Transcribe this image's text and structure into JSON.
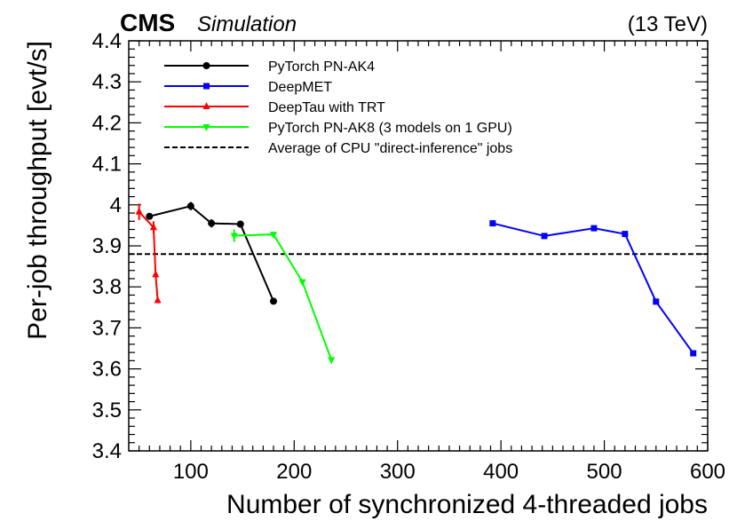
{
  "chart_data": {
    "type": "line",
    "experiment": "CMS",
    "subtitle": "Simulation",
    "energy_label": "(13 TeV)",
    "xlabel": "Number of synchronized 4-threaded jobs",
    "ylabel": "Per-job throughput [evt/s]",
    "xlim": [
      40,
      600
    ],
    "ylim": [
      3.4,
      4.4
    ],
    "x_ticks": [
      100,
      200,
      300,
      400,
      500,
      600
    ],
    "y_ticks": [
      3.4,
      3.5,
      3.6,
      3.7,
      3.8,
      3.9,
      4,
      4.1,
      4.2,
      4.3,
      4.4
    ],
    "y_tick_labels": [
      "3.4",
      "3.5",
      "3.6",
      "3.7",
      "3.8",
      "3.9",
      "4",
      "4.1",
      "4.2",
      "4.3",
      "4.4"
    ],
    "legend_position": "top-left",
    "series": [
      {
        "name": "PyTorch PN-AK4",
        "color": "#000000",
        "marker": "circle",
        "x": [
          60,
          100,
          120,
          148,
          180
        ],
        "y": [
          3.972,
          3.997,
          3.955,
          3.953,
          3.765
        ],
        "yerr": [
          0.006,
          0.01,
          0.01,
          0.008,
          0.004
        ]
      },
      {
        "name": "DeepMET",
        "color": "#0000ff",
        "marker": "square",
        "x": [
          392,
          442,
          490,
          520,
          550,
          586
        ],
        "y": [
          3.955,
          3.924,
          3.943,
          3.929,
          3.764,
          3.638
        ],
        "yerr": [
          0.004,
          0.004,
          0.004,
          0.004,
          0.004,
          0.004
        ]
      },
      {
        "name": "DeepTau with TRT",
        "color": "#ff0000",
        "marker": "triangle-up",
        "x": [
          50,
          64,
          66,
          68
        ],
        "y": [
          3.983,
          3.945,
          3.83,
          3.767
        ],
        "yerr": [
          0.02,
          0.015,
          0.005,
          0.005
        ]
      },
      {
        "name": "PyTorch PN-AK8 (3 models on 1 GPU)",
        "color": "#00ff00",
        "marker": "triangle-down",
        "x": [
          142,
          180,
          208,
          236
        ],
        "y": [
          3.925,
          3.928,
          3.812,
          3.622
        ],
        "yerr": [
          0.015,
          0.006,
          0.005,
          0.005
        ]
      }
    ],
    "reference_line": {
      "name": "Average of CPU \"direct-inference\" jobs",
      "y": 3.88,
      "style": "dashed",
      "color": "#000000"
    }
  }
}
